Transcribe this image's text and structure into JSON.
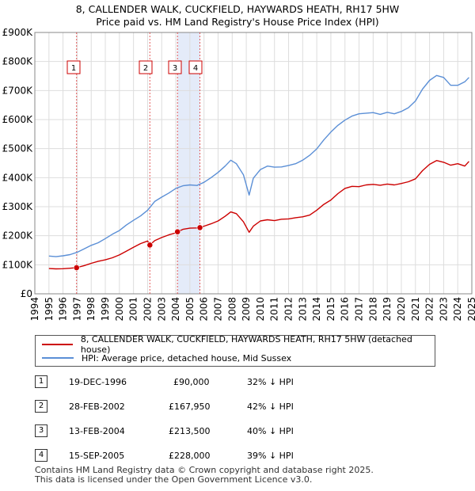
{
  "chart_data": {
    "type": "line",
    "title": "8, CALLENDER WALK, CUCKFIELD, HAYWARDS HEATH, RH17 5HW",
    "subtitle": "Price paid vs. HM Land Registry's House Price Index (HPI)",
    "xlabel": "",
    "ylabel": "",
    "xlim": [
      1994,
      2025
    ],
    "ylim": [
      0,
      900000
    ],
    "y_ticks": [
      0,
      100000,
      200000,
      300000,
      400000,
      500000,
      600000,
      700000,
      800000,
      900000
    ],
    "y_tick_labels": [
      "£0",
      "£100K",
      "£200K",
      "£300K",
      "£400K",
      "£500K",
      "£600K",
      "£700K",
      "£800K",
      "£900K"
    ],
    "x_ticks": [
      1994,
      1995,
      1996,
      1997,
      1998,
      1999,
      2000,
      2001,
      2002,
      2003,
      2004,
      2005,
      2006,
      2007,
      2008,
      2009,
      2010,
      2011,
      2012,
      2013,
      2014,
      2015,
      2016,
      2017,
      2018,
      2019,
      2020,
      2021,
      2022,
      2023,
      2024,
      2025
    ],
    "grid": true,
    "legend_position": "bottom",
    "series": [
      {
        "name": "8, CALLENDER WALK, CUCKFIELD, HAYWARDS HEATH, RH17 5HW (detached house)",
        "color": "#cc0000",
        "x": [
          1995.0,
          1995.5,
          1996.0,
          1996.5,
          1996.96,
          1997.5,
          1998.0,
          1998.5,
          1999.0,
          1999.5,
          2000.0,
          2000.5,
          2001.0,
          2001.5,
          2002.0,
          2002.16,
          2002.5,
          2003.0,
          2003.5,
          2004.0,
          2004.12,
          2004.5,
          2005.0,
          2005.5,
          2005.71,
          2006.0,
          2006.5,
          2007.0,
          2007.5,
          2007.9,
          2008.3,
          2008.8,
          2009.2,
          2009.5,
          2010.0,
          2010.5,
          2011.0,
          2011.5,
          2012.0,
          2012.5,
          2013.0,
          2013.5,
          2014.0,
          2014.5,
          2015.0,
          2015.5,
          2016.0,
          2016.5,
          2017.0,
          2017.5,
          2018.0,
          2018.5,
          2019.0,
          2019.5,
          2020.0,
          2020.5,
          2021.0,
          2021.5,
          2022.0,
          2022.5,
          2023.0,
          2023.5,
          2024.0,
          2024.5,
          2024.8
        ],
        "y": [
          87000,
          86000,
          86500,
          88000,
          90000,
          97000,
          105000,
          112000,
          117000,
          124000,
          134000,
          147000,
          160000,
          173000,
          182000,
          167950,
          183000,
          194000,
          203000,
          210000,
          213500,
          222000,
          226000,
          227000,
          228000,
          233000,
          241000,
          251000,
          267000,
          282000,
          276000,
          248000,
          212000,
          233000,
          251000,
          255000,
          252000,
          257000,
          258000,
          262000,
          265000,
          271000,
          288000,
          308000,
          323000,
          345000,
          363000,
          370000,
          369000,
          375000,
          377000,
          374000,
          378000,
          375000,
          380000,
          386000,
          396000,
          424000,
          446000,
          459000,
          453000,
          443000,
          448000,
          440000,
          456000
        ]
      },
      {
        "name": "HPI: Average price, detached house, Mid Sussex",
        "color": "#5b8fd6",
        "x": [
          1995.0,
          1995.5,
          1996.0,
          1996.5,
          1997.0,
          1997.5,
          1998.0,
          1998.5,
          1999.0,
          1999.5,
          2000.0,
          2000.5,
          2001.0,
          2001.5,
          2002.0,
          2002.5,
          2003.0,
          2003.5,
          2004.0,
          2004.5,
          2005.0,
          2005.5,
          2006.0,
          2006.5,
          2007.0,
          2007.5,
          2007.9,
          2008.3,
          2008.8,
          2009.2,
          2009.5,
          2010.0,
          2010.5,
          2011.0,
          2011.5,
          2012.0,
          2012.5,
          2013.0,
          2013.5,
          2014.0,
          2014.5,
          2015.0,
          2015.5,
          2016.0,
          2016.5,
          2017.0,
          2017.5,
          2018.0,
          2018.5,
          2019.0,
          2019.5,
          2020.0,
          2020.5,
          2021.0,
          2021.5,
          2022.0,
          2022.5,
          2023.0,
          2023.5,
          2024.0,
          2024.5,
          2024.8
        ],
        "y": [
          130000,
          128000,
          131000,
          135000,
          143000,
          155000,
          167000,
          176000,
          190000,
          205000,
          218000,
          237000,
          253000,
          268000,
          288000,
          318000,
          333000,
          347000,
          363000,
          372000,
          375000,
          373000,
          384000,
          400000,
          418000,
          440000,
          460000,
          448000,
          410000,
          340000,
          398000,
          428000,
          440000,
          436000,
          437000,
          442000,
          448000,
          460000,
          477000,
          499000,
          530000,
          557000,
          580000,
          598000,
          612000,
          620000,
          622000,
          624000,
          618000,
          625000,
          620000,
          628000,
          641000,
          664000,
          705000,
          735000,
          752000,
          745000,
          718000,
          718000,
          730000,
          745000
        ]
      }
    ],
    "transactions": [
      {
        "label": "1",
        "x": 1996.96,
        "price": 90000
      },
      {
        "label": "2",
        "x": 2002.16,
        "price": 167950
      },
      {
        "label": "3",
        "x": 2004.12,
        "price": 213500
      },
      {
        "label": "4",
        "x": 2005.71,
        "price": 228000
      }
    ]
  },
  "legend": {
    "property_label": "8, CALLENDER WALK, CUCKFIELD, HAYWARDS HEATH, RH17 5HW (detached house)",
    "hpi_label": "HPI: Average price, detached house, Mid Sussex"
  },
  "sales": [
    {
      "num": "1",
      "date": "19-DEC-1996",
      "price": "£90,000",
      "hpi": "32% ↓ HPI"
    },
    {
      "num": "2",
      "date": "28-FEB-2002",
      "price": "£167,950",
      "hpi": "42% ↓ HPI"
    },
    {
      "num": "3",
      "date": "13-FEB-2004",
      "price": "£213,500",
      "hpi": "40% ↓ HPI"
    },
    {
      "num": "4",
      "date": "15-SEP-2005",
      "price": "£228,000",
      "hpi": "39% ↓ HPI"
    }
  ],
  "footer": {
    "line1": "Contains HM Land Registry data © Crown copyright and database right 2025.",
    "line2": "This data is licensed under the Open Government Licence v3.0."
  },
  "colors": {
    "property": "#cc0000",
    "hpi": "#5b8fd6",
    "grid": "#dddddd",
    "highlight": "#dde6f7"
  }
}
